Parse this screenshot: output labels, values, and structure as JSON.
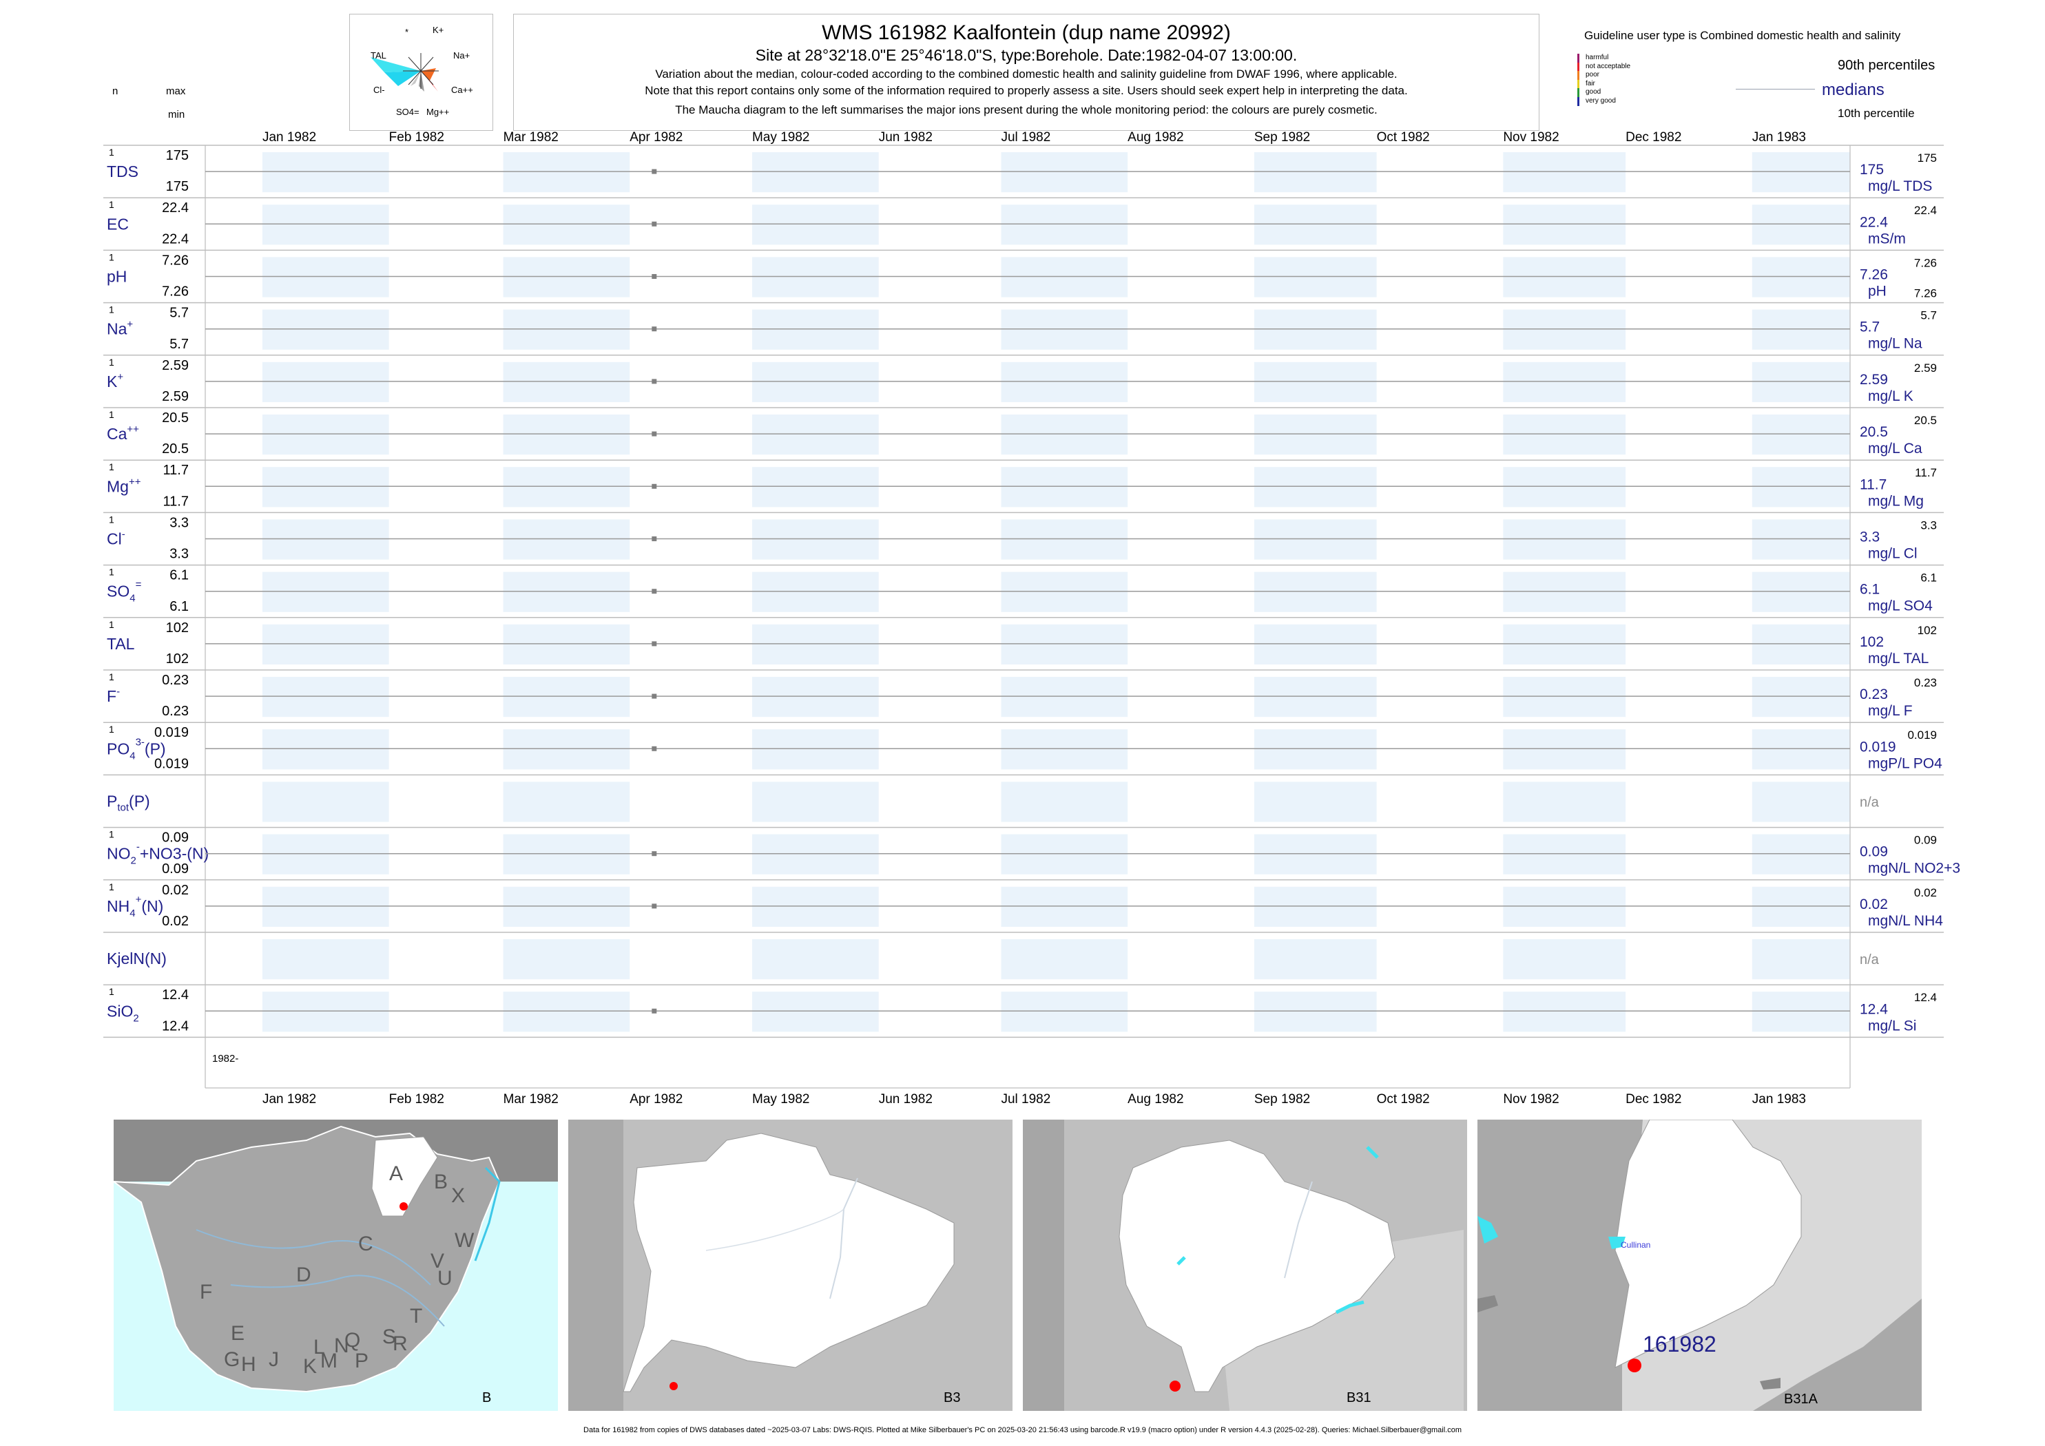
{
  "header": {
    "title": "WMS 161982  Kaalfontein (dup name 20992)",
    "subtitle": "Site at 28°32'18.0\"E 25°46'18.0\"S, type:Borehole. Date:1982-04-07 13:00:00.",
    "note1": "Variation about the median,  colour-coded according to the combined domestic health and salinity guideline from DWAF 1996, where applicable.",
    "note2": "Note that this report contains only some of the information required to properly assess a site. Users should seek expert help in interpreting the data.",
    "note3": "The Maucha diagram to the left summarises the major ions present during the whole monitoring period: the colours are purely cosmetic."
  },
  "maucha": {
    "labels": {
      "star": "*",
      "k": "K+",
      "tal": "TAL",
      "na": "Na+",
      "cl": "Cl-",
      "ca": "Ca++",
      "so4": "SO4=",
      "mg": "Mg++"
    }
  },
  "guideline": {
    "title": "Guideline user type is Combined domestic health and salinity",
    "levels": [
      {
        "label": "harmful",
        "color": "#9c1a6b"
      },
      {
        "label": "not acceptable",
        "color": "#e8202a"
      },
      {
        "label": "poor",
        "color": "#f07f1f"
      },
      {
        "label": "fair",
        "color": "#e6cf1f"
      },
      {
        "label": "good",
        "color": "#2a9a3a"
      },
      {
        "label": "very good",
        "color": "#1f2ba0"
      }
    ]
  },
  "legend": {
    "p90": "90th percentiles",
    "medians": "medians",
    "p10": "10th percentile"
  },
  "left_header": {
    "n": "n",
    "max": "max",
    "min": "min"
  },
  "colors": {
    "label_blue": "#1f1f8a",
    "band": "#eaf3fb",
    "ocean": "#d6fcfd",
    "point": "#808080",
    "marker_red": "#ff0000"
  },
  "chart_data": {
    "type": "scatter",
    "x_axis": {
      "months": [
        "Jan 1982",
        "Feb 1982",
        "Mar 1982",
        "Apr 1982",
        "May 1982",
        "Jun 1982",
        "Jul 1982",
        "Aug 1982",
        "Sep 1982",
        "Oct 1982",
        "Nov 1982",
        "Dec 1982",
        "Jan 1983"
      ],
      "range": [
        "1981-12-18",
        "1983-01-25"
      ],
      "bottom_year_label": "1982-"
    },
    "sample_date": "1982-04-07",
    "variables": [
      {
        "name": "TDS",
        "n": "1",
        "max": "175",
        "min": "175",
        "median": "175",
        "unit": "mg/L TDS",
        "p90": "175",
        "p10": "",
        "value": 175
      },
      {
        "name": "EC",
        "n": "1",
        "max": "22.4",
        "min": "22.4",
        "median": "22.4",
        "unit": "mS/m",
        "p90": "22.4",
        "p10": "",
        "value": 22.4
      },
      {
        "name": "pH",
        "n": "1",
        "max": "7.26",
        "min": "7.26",
        "median": "7.26",
        "unit": "pH",
        "p90": "7.26",
        "p10": "7.26",
        "value": 7.26
      },
      {
        "name": "Na",
        "sup": "+",
        "n": "1",
        "max": "5.7",
        "min": "5.7",
        "median": "5.7",
        "unit": "mg/L Na",
        "p90": "5.7",
        "p10": "",
        "value": 5.7
      },
      {
        "name": "K",
        "sup": "+",
        "n": "1",
        "max": "2.59",
        "min": "2.59",
        "median": "2.59",
        "unit": "mg/L K",
        "p90": "2.59",
        "p10": "",
        "value": 2.59
      },
      {
        "name": "Ca",
        "sup": "++",
        "n": "1",
        "max": "20.5",
        "min": "20.5",
        "median": "20.5",
        "unit": "mg/L Ca",
        "p90": "20.5",
        "p10": "",
        "value": 20.5
      },
      {
        "name": "Mg",
        "sup": "++",
        "n": "1",
        "max": "11.7",
        "min": "11.7",
        "median": "11.7",
        "unit": "mg/L Mg",
        "p90": "11.7",
        "p10": "",
        "value": 11.7
      },
      {
        "name": "Cl",
        "sup": "-",
        "n": "1",
        "max": "3.3",
        "min": "3.3",
        "median": "3.3",
        "unit": "mg/L Cl",
        "p90": "3.3",
        "p10": "",
        "value": 3.3
      },
      {
        "name": "SO",
        "sub": "4",
        "sup": "=",
        "n": "1",
        "max": "6.1",
        "min": "6.1",
        "median": "6.1",
        "unit": "mg/L SO4",
        "p90": "6.1",
        "p10": "",
        "value": 6.1
      },
      {
        "name": "TAL",
        "n": "1",
        "max": "102",
        "min": "102",
        "median": "102",
        "unit": "mg/L TAL",
        "p90": "102",
        "p10": "",
        "value": 102
      },
      {
        "name": "F",
        "sup": "-",
        "n": "1",
        "max": "0.23",
        "min": "0.23",
        "median": "0.23",
        "unit": "mg/L F",
        "p90": "0.23",
        "p10": "",
        "value": 0.23
      },
      {
        "name": "PO",
        "sub": "4",
        "sup": "3-",
        "suffix": "(P)",
        "n": "1",
        "max": "0.019",
        "min": "0.019",
        "median": "0.019",
        "unit": "mgP/L PO4",
        "p90": "0.019",
        "p10": "",
        "value": 0.019
      },
      {
        "name": "P",
        "sub": "tot",
        "suffix": "(P)",
        "n": "",
        "max": "",
        "min": "",
        "median": "n/a",
        "unit": "",
        "p90": "",
        "p10": "",
        "value": null
      },
      {
        "name": "NO",
        "sub": "2",
        "sup": "-",
        "suffix": "+NO3-(N)",
        "n": "1",
        "max": "0.09",
        "min": "0.09",
        "median": "0.09",
        "unit": "mgN/L NO2+3",
        "p90": "0.09",
        "p10": "",
        "value": 0.09
      },
      {
        "name": "NH",
        "sub": "4",
        "sup": "+",
        "suffix": "(N)",
        "n": "1",
        "max": "0.02",
        "min": "0.02",
        "median": "0.02",
        "unit": "mgN/L NH4",
        "p90": "0.02",
        "p10": "",
        "value": 0.02
      },
      {
        "name": "KjelN(N)",
        "n": "",
        "max": "",
        "min": "",
        "median": "n/a",
        "unit": "",
        "p90": "",
        "p10": "",
        "value": null
      },
      {
        "name": "SiO",
        "sub": "2",
        "n": "1",
        "max": "12.4",
        "min": "12.4",
        "median": "12.4",
        "unit": "mg/L Si",
        "p90": "12.4",
        "p10": "",
        "value": 12.4
      }
    ]
  },
  "maps": [
    {
      "caption": "B",
      "region_letters": [
        "A",
        "B",
        "X",
        "W",
        "C",
        "V",
        "U",
        "D",
        "T",
        "F",
        "E",
        "S",
        "R",
        "Q",
        "N",
        "L",
        "M",
        "P",
        "K",
        "J",
        "G",
        "H"
      ]
    },
    {
      "caption": "B3"
    },
    {
      "caption": "B31"
    },
    {
      "caption": "B31A",
      "town": "Cullinan",
      "site_label": "161982"
    }
  ],
  "footer": "Data for 161982 from copies of DWS databases dated ~2025-03-07 Labs: DWS-RQIS. Plotted at Mike Silberbauer's PC on 2025-03-20 21:56:43 using barcode.R v19.9 (macro option) under R version 4.4.3 (2025-02-28). Queries: Michael.Silberbauer@gmail.com"
}
